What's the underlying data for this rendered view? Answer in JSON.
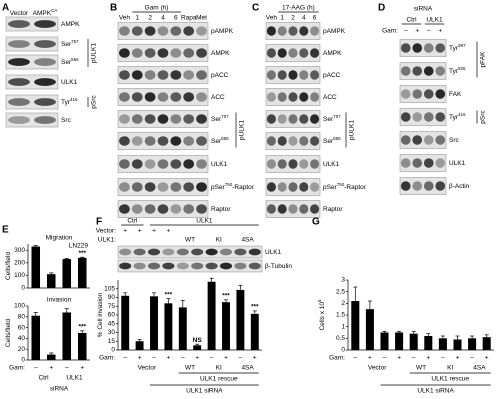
{
  "panels": {
    "A": {
      "letter": "A",
      "lanes": [
        {
          "t": "Vector"
        },
        {
          "t": "AMPK",
          "s": "CA"
        }
      ],
      "rows": [
        {
          "t": "AMPK"
        },
        {
          "t": "Ser",
          "s": "757"
        },
        {
          "t": "Ser",
          "s": "555"
        },
        {
          "t": "ULK1"
        },
        {
          "t": "Tyr",
          "s": "416"
        },
        {
          "t": "Src"
        }
      ],
      "brackets": [
        "pULK1",
        "pSrc"
      ]
    },
    "B": {
      "letter": "B",
      "veh": "Veh",
      "group": "Gam (h)",
      "hours": [
        "1",
        "2",
        "4",
        "6"
      ],
      "extra": [
        "Rapa",
        "Met"
      ],
      "rows": [
        {
          "t": "pAMPK"
        },
        {
          "t": "AMPK"
        },
        {
          "t": "pACC"
        },
        {
          "t": "ACC"
        },
        {
          "t": "Ser",
          "s": "757"
        },
        {
          "t": "Ser",
          "s": "555"
        },
        {
          "t": "ULK1"
        },
        {
          "t": "pSer",
          "s": "792",
          "t2": "-Raptor"
        },
        {
          "t": "Raptor"
        }
      ],
      "brackets": [
        "pULK1"
      ]
    },
    "C": {
      "letter": "C",
      "veh": "Veh",
      "group": "17-AAG (h)",
      "hours": [
        "1",
        "2",
        "4",
        "6"
      ],
      "rows": [
        {
          "t": "pAMPK"
        },
        {
          "t": "AMPK"
        },
        {
          "t": "pACC"
        },
        {
          "t": "ACC"
        },
        {
          "t": "Ser",
          "s": "757"
        },
        {
          "t": "Ser",
          "s": "555"
        },
        {
          "t": "ULK1"
        },
        {
          "t": "pSer",
          "s": "792",
          "t2": "-Raptor"
        },
        {
          "t": "Raptor"
        }
      ],
      "brackets": [
        "pULK1"
      ]
    },
    "D": {
      "letter": "D",
      "group": "siRNA",
      "subgroups": [
        "Ctrl",
        "ULK1"
      ],
      "gam_label": "Gam:",
      "gam": [
        "–",
        "+",
        "–",
        "+"
      ],
      "rows": [
        {
          "t": "Tyr",
          "s": "397"
        },
        {
          "t": "Tyr",
          "s": "925"
        },
        {
          "t": "FAK"
        },
        {
          "t": "Tyr",
          "s": "416"
        },
        {
          "t": "Src"
        },
        {
          "t": "ULK1"
        },
        {
          "t": "β-Actin"
        }
      ],
      "brackets": [
        "pFAK",
        "pSrc"
      ]
    },
    "F": {
      "letter": "F",
      "groups": [
        "Ctrl",
        "ULK1"
      ],
      "vector_label": "Vector:",
      "vector": [
        "+",
        "+",
        "+",
        "+"
      ],
      "ulk1_label": "ULK1:",
      "ulk1": [
        "WT",
        "KI",
        "4SA"
      ],
      "rows": [
        {
          "t": "ULK1"
        },
        {
          "t": "β-Tubulin"
        }
      ]
    }
  },
  "chart_data": [
    {
      "type": "bar",
      "panel": "E",
      "title": "Migration",
      "annotation": "LN229",
      "ylabel": "Cells/field",
      "ylim": [
        0,
        350
      ],
      "yticks": [
        0,
        100,
        200,
        300
      ],
      "values": [
        330,
        110,
        230,
        240
      ],
      "errors": [
        8,
        10,
        5,
        5
      ],
      "significance": [
        null,
        null,
        null,
        "***"
      ],
      "color": "#000000"
    },
    {
      "type": "bar",
      "title": "Invasion",
      "ylabel": "Cells/field",
      "ylim": [
        0,
        100
      ],
      "yticks": [
        0,
        20,
        40,
        60,
        80,
        100
      ],
      "values": [
        82,
        10,
        88,
        50
      ],
      "errors": [
        6,
        3,
        7,
        4
      ],
      "significance": [
        null,
        null,
        null,
        "***"
      ],
      "color": "#000000",
      "gam_label": "Gam:",
      "gam": [
        "–",
        "+",
        "–",
        "+"
      ],
      "groups": [
        "Ctrl",
        "ULK1"
      ],
      "group_caption": "siRNA"
    },
    {
      "type": "bar",
      "ylabel": "% Cell invasion",
      "ylim": [
        0,
        120
      ],
      "yticks": [
        0,
        15,
        30,
        45,
        60,
        75,
        90,
        105
      ],
      "values": [
        93,
        15,
        92,
        80,
        73,
        8,
        117,
        82,
        103,
        62
      ],
      "errors": [
        5,
        3,
        6,
        8,
        12,
        2,
        6,
        4,
        8,
        5
      ],
      "significance": [
        null,
        null,
        null,
        "***",
        null,
        "NS",
        null,
        "***",
        null,
        "***"
      ],
      "color": "#000000",
      "gam_label": "Gam:",
      "gam": [
        "–",
        "+",
        "–",
        "+",
        "–",
        "+",
        "–",
        "+",
        "–",
        "+"
      ],
      "groups": [
        "Vector",
        "WT",
        "KI",
        "4SA"
      ],
      "brackets": [
        "ULK1 rescue",
        "ULK1 siRNA"
      ]
    },
    {
      "type": "bar",
      "panel": "G",
      "ylabel": "Cells x 10",
      "ylabel_sup": "5",
      "ylim": [
        0,
        3
      ],
      "yticks": [
        0,
        0.5,
        1,
        1.5,
        2,
        2.5,
        3
      ],
      "values": [
        2.1,
        1.75,
        0.75,
        0.75,
        0.7,
        0.6,
        0.5,
        0.45,
        0.5,
        0.55
      ],
      "errors": [
        0.6,
        0.35,
        0.05,
        0.05,
        0.1,
        0.1,
        0.1,
        0.15,
        0.1,
        0.1
      ],
      "color": "#000000",
      "gam_label": "Gam:",
      "gam": [
        "–",
        "+",
        "–",
        "+",
        "–",
        "+",
        "–",
        "+",
        "–",
        "+"
      ],
      "groups": [
        "Vector",
        "WT",
        "KI",
        "4SA"
      ],
      "brackets": [
        "ULK1 rescue",
        "ULK1 siRNA"
      ]
    }
  ]
}
